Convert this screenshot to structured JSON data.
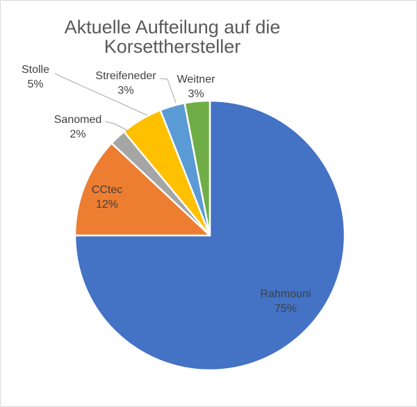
{
  "chart_data": {
    "type": "pie",
    "title": "Aktuelle Aufteilung auf die Korsetthersteller",
    "legend": "none",
    "start_angle_deg": 0,
    "direction": "clockwise",
    "units": "percent",
    "slices": [
      {
        "label": "Rahmouni",
        "value": 75,
        "pct_label": "75%",
        "color": "#4472C4",
        "label_placement": "inside"
      },
      {
        "label": "CCtec",
        "value": 12,
        "pct_label": "12%",
        "color": "#ED7D31",
        "label_placement": "inside"
      },
      {
        "label": "Sanomed",
        "value": 2,
        "pct_label": "2%",
        "color": "#A5A5A5",
        "label_placement": "outside"
      },
      {
        "label": "Stolle",
        "value": 5,
        "pct_label": "5%",
        "color": "#FFC000",
        "label_placement": "outside"
      },
      {
        "label": "Streifeneder",
        "value": 3,
        "pct_label": "3%",
        "color": "#5B9BD5",
        "label_placement": "outside"
      },
      {
        "label": "Weitner",
        "value": 3,
        "pct_label": "3%",
        "color": "#70AD47",
        "label_placement": "outside"
      }
    ],
    "colors": {
      "title_text": "#595959",
      "label_text": "#404040",
      "leader_line": "#A6A6A6",
      "slice_border": "#FFFFFF",
      "frame_border": "#D9D9D9",
      "background": "#FFFFFF"
    }
  }
}
